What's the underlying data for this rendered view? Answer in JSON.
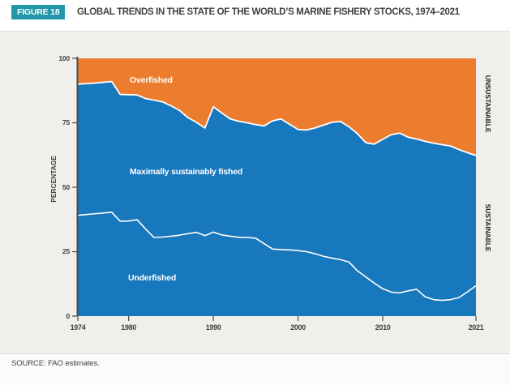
{
  "header": {
    "badge": "FIGURE 18",
    "title": "GLOBAL TRENDS IN THE STATE OF THE WORLD’S MARINE FISHERY STOCKS, 1974–2021"
  },
  "footer": {
    "source": "SOURCE: FAO estimates."
  },
  "colors": {
    "badge_teal": "#2397a9",
    "overfished_orange": "#ed7d2e",
    "sustainable_blue": "#1878bd",
    "boundary_white": "#ffffff",
    "axis_dark": "#4a4a4c",
    "panel_bg": "#f0efec",
    "text_dark": "#414042"
  },
  "chart_data": {
    "type": "area",
    "title": "Global trends in the state of the world's marine fishery stocks, 1974–2021",
    "xlabel": "",
    "ylabel": "PERCENTAGE",
    "ylim": [
      0,
      100
    ],
    "yticks": [
      100,
      75,
      50,
      25,
      0
    ],
    "xticks": [
      1974,
      1980,
      1990,
      2000,
      2010,
      2021
    ],
    "grid": false,
    "legend_position": "none",
    "x": [
      1974,
      1975,
      1976,
      1977,
      1978,
      1979,
      1980,
      1981,
      1982,
      1983,
      1984,
      1985,
      1986,
      1987,
      1988,
      1989,
      1990,
      1991,
      1992,
      1993,
      1994,
      1995,
      1996,
      1997,
      1998,
      1999,
      2000,
      2001,
      2002,
      2003,
      2004,
      2005,
      2006,
      2007,
      2008,
      2009,
      2010,
      2011,
      2012,
      2013,
      2014,
      2015,
      2016,
      2017,
      2018,
      2019,
      2020,
      2021
    ],
    "series": [
      {
        "name": "Biologically sustainable share (boundary between blue and orange; above = Overfished)",
        "values": [
          90.0,
          90.2,
          90.4,
          90.7,
          91.0,
          86.0,
          85.9,
          85.8,
          84.4,
          83.8,
          83.1,
          81.6,
          79.8,
          77.0,
          75.2,
          73.0,
          81.2,
          78.8,
          76.5,
          75.6,
          75.0,
          74.3,
          73.8,
          75.8,
          76.5,
          74.4,
          72.4,
          72.2,
          73.0,
          74.1,
          75.2,
          75.5,
          73.5,
          70.8,
          67.3,
          66.7,
          68.6,
          70.4,
          71.0,
          69.4,
          68.7,
          67.8,
          67.1,
          66.5,
          66.0,
          64.6,
          63.4,
          62.3
        ]
      },
      {
        "name": "Underfished share (white line; between line and blue/orange boundary = Maximally sustainably fished)",
        "values": [
          39.1,
          39.4,
          39.7,
          40.0,
          40.3,
          36.8,
          36.9,
          37.4,
          33.8,
          30.5,
          30.7,
          31.0,
          31.4,
          32.0,
          32.5,
          31.2,
          32.6,
          31.5,
          31.0,
          30.6,
          30.5,
          30.2,
          28.1,
          26.0,
          25.8,
          25.7,
          25.4,
          25.0,
          24.2,
          23.2,
          22.5,
          21.9,
          21.0,
          17.6,
          15.2,
          12.8,
          10.6,
          9.3,
          9.0,
          9.8,
          10.4,
          7.5,
          6.4,
          6.1,
          6.4,
          7.2,
          9.4,
          11.8
        ]
      }
    ],
    "regions": {
      "overfished": "Overfished",
      "maximally": "Maximally sustainably fished",
      "underfished": "Underfished"
    },
    "right_axis_labels": {
      "top": "UNSUSTAINABLE",
      "bottom": "SUSTAINABLE"
    }
  }
}
